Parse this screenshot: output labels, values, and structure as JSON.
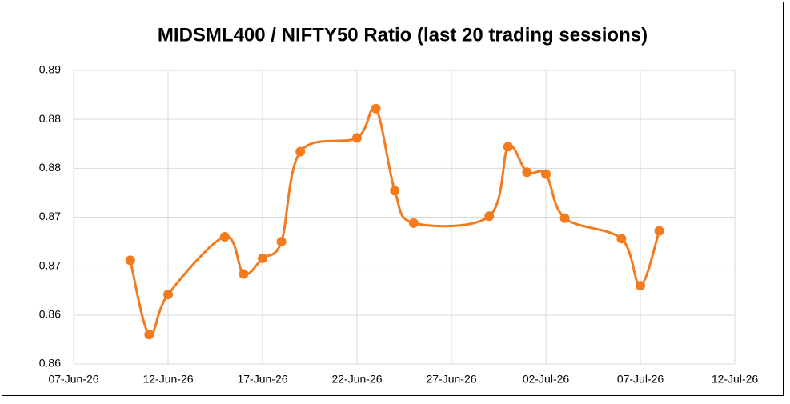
{
  "chart_data": {
    "type": "line",
    "title": "MIDSML400 / NIFTY50 Ratio (last 20 trading sessions)",
    "x": [
      "2026-06-10",
      "2026-06-11",
      "2026-06-12",
      "2026-06-15",
      "2026-06-16",
      "2026-06-17",
      "2026-06-18",
      "2026-06-19",
      "2026-06-22",
      "2026-06-23",
      "2026-06-24",
      "2026-06-25",
      "2026-06-29",
      "2026-06-30",
      "2026-07-01",
      "2026-07-02",
      "2026-07-03",
      "2026-07-06",
      "2026-07-07",
      "2026-07-08"
    ],
    "series": [
      {
        "name": "MIDSML400 / NIFTY50",
        "color": "#f37b1e",
        "values": [
          0.8706,
          0.863,
          0.8671,
          0.873,
          0.8692,
          0.8708,
          0.8725,
          0.8817,
          0.8831,
          0.8861,
          0.8777,
          0.8744,
          0.8751,
          0.8822,
          0.8796,
          0.8794,
          0.8749,
          0.8728,
          0.868,
          0.8736
        ]
      }
    ],
    "xlim": [
      "2026-06-07",
      "2026-07-12"
    ],
    "xticks": [
      {
        "value": "2026-06-07",
        "label": "07-Jun-26"
      },
      {
        "value": "2026-06-12",
        "label": "12-Jun-26"
      },
      {
        "value": "2026-06-17",
        "label": "17-Jun-26"
      },
      {
        "value": "2026-06-22",
        "label": "22-Jun-26"
      },
      {
        "value": "2026-06-27",
        "label": "27-Jun-26"
      },
      {
        "value": "2026-07-02",
        "label": "02-Jul-26"
      },
      {
        "value": "2026-07-07",
        "label": "07-Jul-26"
      },
      {
        "value": "2026-07-12",
        "label": "12-Jul-26"
      }
    ],
    "ylim": [
      0.86,
      0.89
    ],
    "yticks": [
      0.86,
      {
        "value": 0.865,
        "label": "0.86"
      },
      0.87,
      {
        "value": 0.875,
        "label": "0.87"
      },
      0.88,
      {
        "value": 0.885,
        "label": "0.88"
      },
      0.89
    ],
    "grid": true,
    "smooth": true
  }
}
